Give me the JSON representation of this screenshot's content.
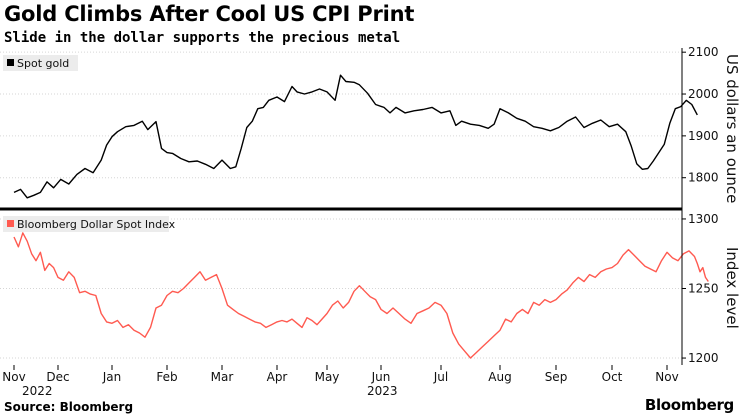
{
  "title": "Gold Climbs After Cool US CPI Print",
  "subtitle": "Slide in the dollar supports the precious metal",
  "source": "Source: Bloomberg",
  "brand": "Bloomberg",
  "colors": {
    "gold_line": "#000000",
    "dollar_line": "#ff5a50",
    "grid": "#d6d6d6",
    "divider": "#000000"
  },
  "chart_data": [
    {
      "type": "line",
      "series": [
        {
          "name": "Spot gold"
        }
      ],
      "ylabel": "US dollars an ounce",
      "ylim": [
        1730,
        2110
      ],
      "yticks": [
        1800,
        1900,
        2000,
        2100
      ],
      "ytick_labels": [
        "1800",
        "1900",
        "2000",
        "2100"
      ],
      "xlim": [
        0,
        12.6
      ],
      "points": [
        [
          0.0,
          1765
        ],
        [
          0.15,
          1772
        ],
        [
          0.3,
          1752
        ],
        [
          0.45,
          1758
        ],
        [
          0.6,
          1765
        ],
        [
          0.75,
          1790
        ],
        [
          0.9,
          1776
        ],
        [
          1.05,
          1796
        ],
        [
          1.2,
          1785
        ],
        [
          1.35,
          1808
        ],
        [
          1.5,
          1822
        ],
        [
          1.65,
          1812
        ],
        [
          1.8,
          1842
        ],
        [
          1.9,
          1878
        ],
        [
          2.0,
          1898
        ],
        [
          2.1,
          1910
        ],
        [
          2.25,
          1922
        ],
        [
          2.4,
          1925
        ],
        [
          2.55,
          1935
        ],
        [
          2.65,
          1915
        ],
        [
          2.8,
          1934
        ],
        [
          2.9,
          1870
        ],
        [
          3.0,
          1860
        ],
        [
          3.1,
          1858
        ],
        [
          3.25,
          1846
        ],
        [
          3.4,
          1838
        ],
        [
          3.55,
          1840
        ],
        [
          3.7,
          1832
        ],
        [
          3.85,
          1822
        ],
        [
          4.0,
          1842
        ],
        [
          4.15,
          1822
        ],
        [
          4.25,
          1826
        ],
        [
          4.35,
          1870
        ],
        [
          4.45,
          1920
        ],
        [
          4.55,
          1935
        ],
        [
          4.65,
          1965
        ],
        [
          4.75,
          1968
        ],
        [
          4.85,
          1985
        ],
        [
          5.0,
          1993
        ],
        [
          5.15,
          1982
        ],
        [
          5.3,
          2018
        ],
        [
          5.4,
          2005
        ],
        [
          5.55,
          2000
        ],
        [
          5.7,
          2005
        ],
        [
          5.85,
          2012
        ],
        [
          6.0,
          2005
        ],
        [
          6.15,
          1985
        ],
        [
          6.25,
          2045
        ],
        [
          6.35,
          2030
        ],
        [
          6.5,
          2028
        ],
        [
          6.6,
          2022
        ],
        [
          6.75,
          2002
        ],
        [
          6.9,
          1975
        ],
        [
          7.05,
          1968
        ],
        [
          7.15,
          1955
        ],
        [
          7.25,
          1968
        ],
        [
          7.4,
          1955
        ],
        [
          7.55,
          1960
        ],
        [
          7.7,
          1963
        ],
        [
          7.85,
          1968
        ],
        [
          8.0,
          1955
        ],
        [
          8.15,
          1960
        ],
        [
          8.25,
          1925
        ],
        [
          8.35,
          1935
        ],
        [
          8.5,
          1928
        ],
        [
          8.65,
          1925
        ],
        [
          8.8,
          1918
        ],
        [
          8.9,
          1928
        ],
        [
          9.0,
          1965
        ],
        [
          9.15,
          1955
        ],
        [
          9.3,
          1942
        ],
        [
          9.45,
          1935
        ],
        [
          9.6,
          1922
        ],
        [
          9.75,
          1918
        ],
        [
          9.9,
          1912
        ],
        [
          10.05,
          1920
        ],
        [
          10.2,
          1935
        ],
        [
          10.35,
          1945
        ],
        [
          10.5,
          1920
        ],
        [
          10.65,
          1930
        ],
        [
          10.8,
          1938
        ],
        [
          10.95,
          1922
        ],
        [
          11.1,
          1928
        ],
        [
          11.25,
          1910
        ],
        [
          11.35,
          1875
        ],
        [
          11.45,
          1833
        ],
        [
          11.55,
          1820
        ],
        [
          11.65,
          1822
        ],
        [
          11.75,
          1840
        ],
        [
          11.85,
          1860
        ],
        [
          11.95,
          1880
        ],
        [
          12.05,
          1930
        ],
        [
          12.15,
          1965
        ],
        [
          12.25,
          1970
        ],
        [
          12.35,
          1985
        ],
        [
          12.45,
          1975
        ],
        [
          12.55,
          1950
        ]
      ]
    },
    {
      "type": "line",
      "series": [
        {
          "name": "Bloomberg Dollar Spot Index"
        }
      ],
      "ylabel": "Index level",
      "ylim": [
        1195,
        1305
      ],
      "yticks": [
        1200,
        1250,
        1300
      ],
      "ytick_labels": [
        "1200",
        "1250",
        "1300"
      ],
      "xlim": [
        0,
        12.6
      ],
      "x_tick_labels": [
        "Nov",
        "Dec",
        "Jan",
        "Feb",
        "Mar",
        "Apr",
        "May",
        "Jun",
        "Jul",
        "Aug",
        "Sep",
        "Oct",
        "Nov"
      ],
      "x_tick_positions": [
        0,
        1,
        2,
        3,
        4,
        5,
        6,
        7,
        8,
        9,
        10,
        11,
        12
      ],
      "year_labels": [
        {
          "x": 0.5,
          "label": "2022"
        },
        {
          "x": 7.0,
          "label": "2023"
        }
      ],
      "points": [
        [
          0.0,
          1287
        ],
        [
          0.1,
          1280
        ],
        [
          0.2,
          1290
        ],
        [
          0.3,
          1284
        ],
        [
          0.4,
          1275
        ],
        [
          0.5,
          1270
        ],
        [
          0.6,
          1276
        ],
        [
          0.7,
          1263
        ],
        [
          0.8,
          1268
        ],
        [
          0.9,
          1265
        ],
        [
          1.0,
          1258
        ],
        [
          1.1,
          1256
        ],
        [
          1.2,
          1262
        ],
        [
          1.3,
          1258
        ],
        [
          1.4,
          1247
        ],
        [
          1.5,
          1248
        ],
        [
          1.6,
          1246
        ],
        [
          1.7,
          1245
        ],
        [
          1.8,
          1232
        ],
        [
          1.9,
          1226
        ],
        [
          2.0,
          1225
        ],
        [
          2.1,
          1227
        ],
        [
          2.2,
          1222
        ],
        [
          2.3,
          1224
        ],
        [
          2.4,
          1220
        ],
        [
          2.5,
          1218
        ],
        [
          2.6,
          1215
        ],
        [
          2.7,
          1222
        ],
        [
          2.8,
          1236
        ],
        [
          2.9,
          1238
        ],
        [
          3.0,
          1245
        ],
        [
          3.1,
          1248
        ],
        [
          3.2,
          1247
        ],
        [
          3.3,
          1250
        ],
        [
          3.4,
          1254
        ],
        [
          3.5,
          1258
        ],
        [
          3.6,
          1262
        ],
        [
          3.7,
          1256
        ],
        [
          3.8,
          1258
        ],
        [
          3.9,
          1260
        ],
        [
          4.0,
          1250
        ],
        [
          4.1,
          1238
        ],
        [
          4.2,
          1235
        ],
        [
          4.3,
          1232
        ],
        [
          4.4,
          1230
        ],
        [
          4.5,
          1228
        ],
        [
          4.6,
          1226
        ],
        [
          4.7,
          1225
        ],
        [
          4.8,
          1222
        ],
        [
          4.9,
          1224
        ],
        [
          5.0,
          1226
        ],
        [
          5.1,
          1227
        ],
        [
          5.2,
          1226
        ],
        [
          5.3,
          1228
        ],
        [
          5.4,
          1225
        ],
        [
          5.5,
          1222
        ],
        [
          5.6,
          1229
        ],
        [
          5.7,
          1227
        ],
        [
          5.8,
          1224
        ],
        [
          5.9,
          1228
        ],
        [
          6.0,
          1232
        ],
        [
          6.1,
          1238
        ],
        [
          6.2,
          1241
        ],
        [
          6.3,
          1236
        ],
        [
          6.4,
          1240
        ],
        [
          6.5,
          1248
        ],
        [
          6.6,
          1252
        ],
        [
          6.7,
          1248
        ],
        [
          6.8,
          1244
        ],
        [
          6.9,
          1242
        ],
        [
          7.0,
          1235
        ],
        [
          7.1,
          1232
        ],
        [
          7.2,
          1236
        ],
        [
          7.3,
          1232
        ],
        [
          7.4,
          1228
        ],
        [
          7.5,
          1225
        ],
        [
          7.6,
          1232
        ],
        [
          7.7,
          1234
        ],
        [
          7.8,
          1236
        ],
        [
          7.9,
          1240
        ],
        [
          8.0,
          1238
        ],
        [
          8.1,
          1232
        ],
        [
          8.2,
          1218
        ],
        [
          8.3,
          1210
        ],
        [
          8.4,
          1205
        ],
        [
          8.5,
          1200
        ],
        [
          8.6,
          1204
        ],
        [
          8.7,
          1208
        ],
        [
          8.8,
          1212
        ],
        [
          8.9,
          1216
        ],
        [
          9.0,
          1220
        ],
        [
          9.1,
          1228
        ],
        [
          9.2,
          1226
        ],
        [
          9.3,
          1232
        ],
        [
          9.4,
          1235
        ],
        [
          9.5,
          1232
        ],
        [
          9.6,
          1240
        ],
        [
          9.7,
          1238
        ],
        [
          9.8,
          1242
        ],
        [
          9.9,
          1240
        ],
        [
          10.0,
          1242
        ],
        [
          10.1,
          1246
        ],
        [
          10.2,
          1249
        ],
        [
          10.3,
          1254
        ],
        [
          10.4,
          1258
        ],
        [
          10.5,
          1255
        ],
        [
          10.6,
          1260
        ],
        [
          10.7,
          1258
        ],
        [
          10.8,
          1262
        ],
        [
          10.9,
          1264
        ],
        [
          11.0,
          1265
        ],
        [
          11.1,
          1268
        ],
        [
          11.2,
          1274
        ],
        [
          11.3,
          1278
        ],
        [
          11.4,
          1274
        ],
        [
          11.5,
          1270
        ],
        [
          11.6,
          1266
        ],
        [
          11.7,
          1264
        ],
        [
          11.8,
          1262
        ],
        [
          11.9,
          1270
        ],
        [
          12.0,
          1276
        ],
        [
          12.1,
          1272
        ],
        [
          12.2,
          1270
        ],
        [
          12.3,
          1275
        ],
        [
          12.4,
          1277
        ],
        [
          12.5,
          1273
        ],
        [
          12.55,
          1268
        ],
        [
          12.6,
          1262
        ],
        [
          12.65,
          1265
        ],
        [
          12.7,
          1258
        ],
        [
          12.75,
          1255
        ]
      ]
    }
  ]
}
